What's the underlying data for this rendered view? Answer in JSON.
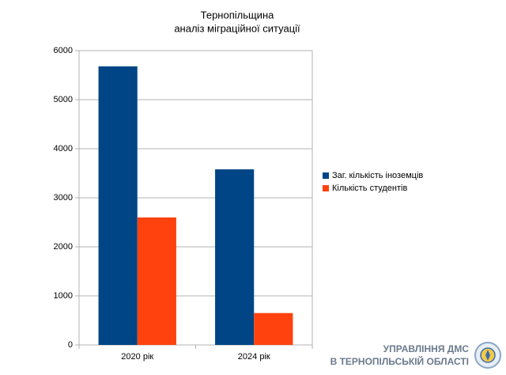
{
  "chart_data": {
    "type": "bar",
    "title": "Тернопільщина",
    "subtitle": "аналіз міграційної ситуації",
    "categories": [
      "2020 рік",
      "2024 рік"
    ],
    "series": [
      {
        "name": "Заг. кількість іноземців",
        "color": "#004586",
        "values": [
          5680,
          3580
        ]
      },
      {
        "name": "Кількість студентів",
        "color": "#ff420e",
        "values": [
          2600,
          650
        ]
      }
    ],
    "ylim": [
      0,
      6000
    ],
    "yticks": [
      0,
      1000,
      2000,
      3000,
      4000,
      5000,
      6000
    ],
    "grid": true,
    "legend": "right"
  },
  "footer": {
    "line1": "УПРАВЛІННЯ ДМС",
    "line2": "В ТЕРНОПІЛЬСЬКІЙ ОБЛАСТІ"
  }
}
